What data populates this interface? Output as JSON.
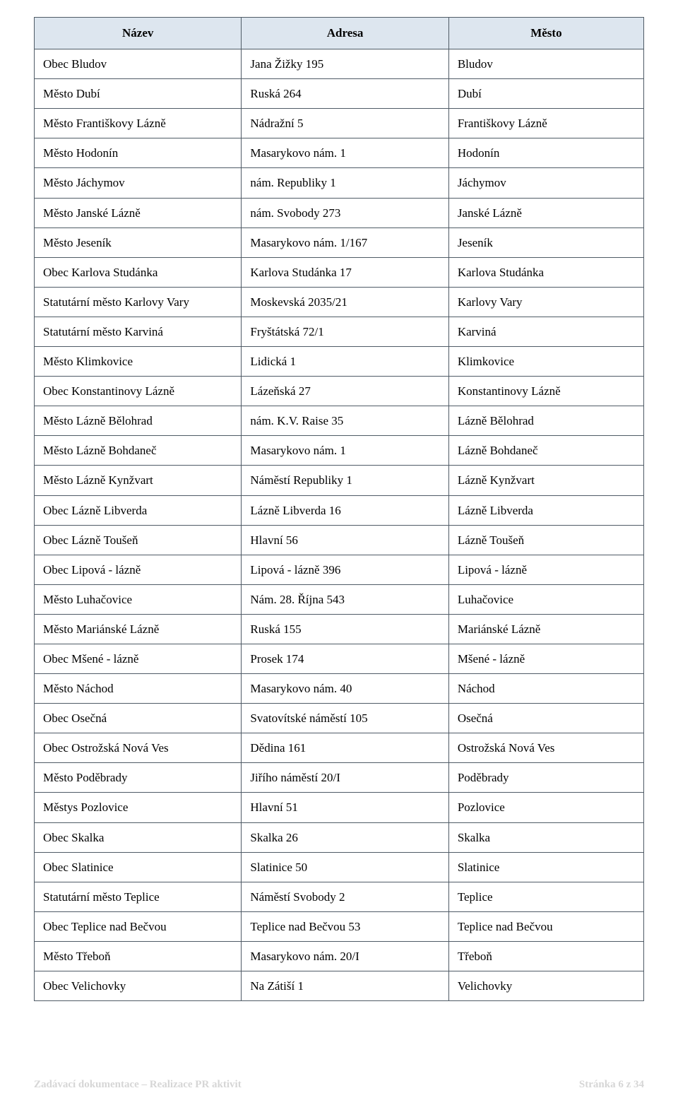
{
  "table": {
    "headers": [
      "Název",
      "Adresa",
      "Město"
    ],
    "header_bg": "#dde6ef",
    "border_color": "#4f5b66",
    "rows": [
      [
        "Obec Bludov",
        "Jana Žižky 195",
        "Bludov"
      ],
      [
        "Město Dubí",
        "Ruská 264",
        "Dubí"
      ],
      [
        "Město Františkovy Lázně",
        "Nádražní 5",
        "Františkovy Lázně"
      ],
      [
        "Město Hodonín",
        "Masarykovo nám. 1",
        "Hodonín"
      ],
      [
        "Město Jáchymov",
        "nám. Republiky 1",
        "Jáchymov"
      ],
      [
        "Město Janské Lázně",
        "nám. Svobody 273",
        "Janské Lázně"
      ],
      [
        "Město Jeseník",
        "Masarykovo nám. 1/167",
        "Jeseník"
      ],
      [
        "Obec Karlova Studánka",
        "Karlova Studánka 17",
        "Karlova Studánka"
      ],
      [
        "Statutární město Karlovy Vary",
        "Moskevská 2035/21",
        "Karlovy Vary"
      ],
      [
        "Statutární město Karviná",
        "Fryštátská 72/1",
        "Karviná"
      ],
      [
        "Město Klimkovice",
        "Lidická 1",
        "Klimkovice"
      ],
      [
        "Obec Konstantinovy Lázně",
        "Lázeňská 27",
        "Konstantinovy Lázně"
      ],
      [
        "Město Lázně Bělohrad",
        "nám. K.V. Raise 35",
        "Lázně Bělohrad"
      ],
      [
        "Město Lázně Bohdaneč",
        "Masarykovo nám. 1",
        "Lázně Bohdaneč"
      ],
      [
        "Město Lázně Kynžvart",
        "Náměstí Republiky 1",
        "Lázně Kynžvart"
      ],
      [
        "Obec Lázně Libverda",
        "Lázně Libverda 16",
        "Lázně Libverda"
      ],
      [
        "Obec Lázně Toušeň",
        "Hlavní 56",
        "Lázně Toušeň"
      ],
      [
        "Obec Lipová - lázně",
        "Lipová - lázně 396",
        "Lipová - lázně"
      ],
      [
        "Město Luhačovice",
        "Nám. 28. Října 543",
        "Luhačovice"
      ],
      [
        "Město Mariánské Lázně",
        "Ruská 155",
        "Mariánské Lázně"
      ],
      [
        "Obec Mšené - lázně",
        "Prosek 174",
        "Mšené - lázně"
      ],
      [
        "Město Náchod",
        "Masarykovo nám. 40",
        "Náchod"
      ],
      [
        "Obec Osečná",
        "Svatovítské náměstí 105",
        "Osečná"
      ],
      [
        "Obec Ostrožská Nová Ves",
        "Dědina 161",
        "Ostrožská Nová Ves"
      ],
      [
        "Město Poděbrady",
        "Jiřího náměstí  20/I",
        "Poděbrady"
      ],
      [
        "Městys Pozlovice",
        "Hlavní 51",
        "Pozlovice"
      ],
      [
        "Obec Skalka",
        "Skalka 26",
        "Skalka"
      ],
      [
        "Obec Slatinice",
        "Slatinice 50",
        "Slatinice"
      ],
      [
        "Statutární město Teplice",
        "Náměstí Svobody 2",
        "Teplice"
      ],
      [
        "Obec Teplice nad Bečvou",
        "Teplice nad Bečvou 53",
        "Teplice nad Bečvou"
      ],
      [
        "Město Třeboň",
        "Masarykovo nám. 20/I",
        "Třeboň"
      ],
      [
        "Obec Velichovky",
        "Na Zátiší 1",
        "Velichovky"
      ]
    ]
  },
  "footer": {
    "left": "Zadávací dokumentace – Realizace PR aktivit",
    "right": "Stránka 6 z 34",
    "color": "#d6d6d6"
  }
}
